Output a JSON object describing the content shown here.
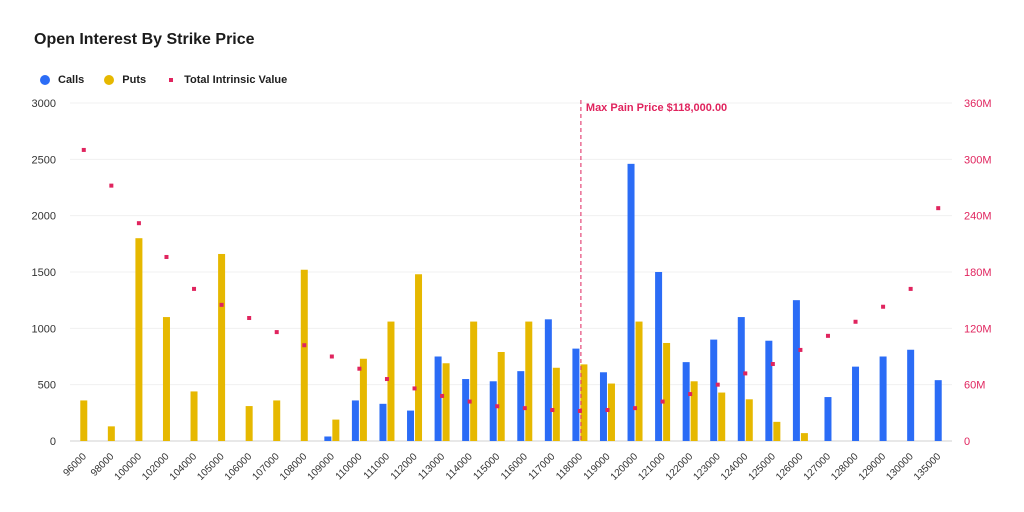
{
  "chart_data": {
    "type": "bar",
    "title": "Open Interest By Strike Price",
    "categories": [
      "96000",
      "98000",
      "100000",
      "102000",
      "104000",
      "105000",
      "106000",
      "107000",
      "108000",
      "109000",
      "110000",
      "111000",
      "112000",
      "113000",
      "114000",
      "115000",
      "116000",
      "117000",
      "118000",
      "119000",
      "120000",
      "121000",
      "122000",
      "123000",
      "124000",
      "125000",
      "126000",
      "127000",
      "128000",
      "129000",
      "130000",
      "135000"
    ],
    "series": [
      {
        "name": "Calls",
        "type": "bar",
        "axis": "left",
        "color": "#2b6cf6",
        "values": [
          0,
          0,
          0,
          0,
          0,
          0,
          0,
          0,
          0,
          40,
          360,
          330,
          270,
          750,
          550,
          530,
          620,
          1080,
          820,
          610,
          2460,
          1500,
          700,
          900,
          1100,
          890,
          1250,
          390,
          660,
          750,
          810,
          540
        ]
      },
      {
        "name": "Puts",
        "type": "bar",
        "axis": "left",
        "color": "#e6b800",
        "values": [
          360,
          130,
          1800,
          1100,
          440,
          1660,
          310,
          360,
          1520,
          190,
          730,
          1060,
          1480,
          690,
          1060,
          790,
          1060,
          650,
          680,
          510,
          1060,
          870,
          530,
          430,
          370,
          170,
          70,
          0,
          0,
          0,
          0,
          0
        ]
      },
      {
        "name": "Total Intrinsic Value",
        "type": "scatter",
        "axis": "right",
        "color": "#e0245e",
        "values": [
          310,
          272,
          232,
          196,
          162,
          145,
          131,
          116,
          102,
          90,
          77,
          66,
          56,
          48,
          42,
          37,
          35,
          33,
          32,
          33,
          35,
          42,
          50,
          60,
          72,
          82,
          97,
          112,
          127,
          143,
          162,
          248
        ]
      }
    ],
    "yleft": {
      "min": 0,
      "max": 3000,
      "ticks": [
        "0",
        "500",
        "1000",
        "1500",
        "2000",
        "2500",
        "3000"
      ]
    },
    "yright": {
      "min": 0,
      "max": 360,
      "ticks": [
        "0",
        "60M",
        "120M",
        "180M",
        "240M",
        "300M",
        "360M"
      ]
    },
    "annotation": {
      "label": "Max Pain Price $118,000.00",
      "category": "118000",
      "color": "#e0245e"
    },
    "grid": true,
    "legend_position": "top-left"
  }
}
